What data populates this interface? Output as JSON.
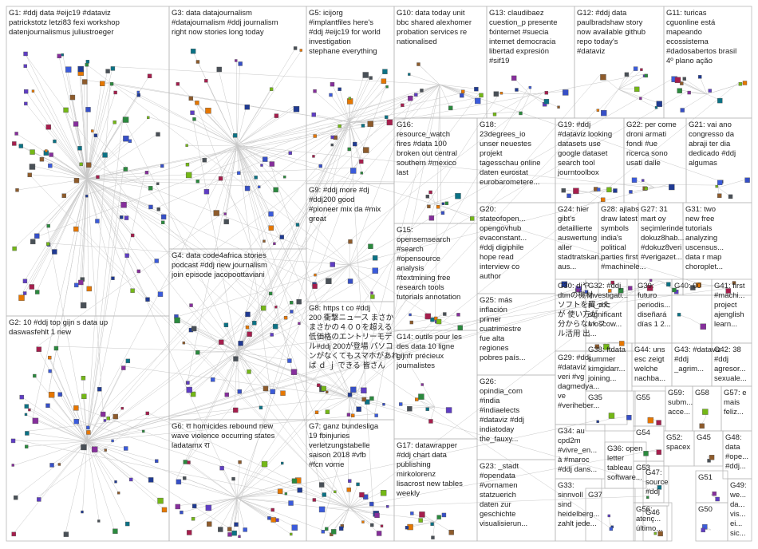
{
  "colors": {
    "node_palette": [
      "#1f3a93",
      "#3b5bdb",
      "#5f3dc4",
      "#862e9c",
      "#0b7285",
      "#2b8a3e",
      "#a61e4d",
      "#e67700",
      "#495057",
      "#8e5b2b",
      "#74b816",
      "#364fc7"
    ],
    "edge": "#c8c8c8",
    "border": "#b9b9b9"
  },
  "groups": [
    {
      "id": "G1",
      "lines": [
        "G1: #ddj data #eijc19 #dataviz",
        "patrickstotz letzi83 fexi workshop",
        "datenjournalismus juliustroeger"
      ]
    },
    {
      "id": "G2",
      "lines": [
        "G2: 10 #ddj top gijn s data up",
        "daswasfehlt 1 new"
      ]
    },
    {
      "id": "G3",
      "lines": [
        "G3: data datajournalism",
        "#datajournalism #ddj journalism",
        "right now stories long today"
      ]
    },
    {
      "id": "G4",
      "lines": [
        "G4: data code4africa stories",
        "podcast #ddj new journalism",
        "join episode jacopoottaviani"
      ]
    },
    {
      "id": "G5",
      "lines": [
        "G5: icijorg",
        "#implantfiles here's",
        "#ddj #eijc19 for world",
        "investigation",
        "stephane everything"
      ]
    },
    {
      "id": "G6",
      "lines": [
        "G6: रा homicides rebound new",
        "wave violence occurring states",
        "ladatamx रा"
      ]
    },
    {
      "id": "G7",
      "lines": [
        "G7: ganz bundesliga",
        "19 fbinjuries",
        "verletzungstabelle",
        "saison 2018 #vfb",
        "#fcn vorne"
      ]
    },
    {
      "id": "G8",
      "lines": [
        "G8: https t co #ddj",
        "200 衝撃ニュース まさか",
        "まさかの４００を超える",
        "低価格のエントリーモデ",
        "ル#ddj 200が登場 パソコ",
        "ンがなくてもスマホがあれ",
        "ば ｄ ｊ できる 皆さん"
      ]
    },
    {
      "id": "G9",
      "lines": [
        "G9: #ddj more #dj",
        "#ddj200 good",
        "#pioneer mix da #mix",
        "great"
      ]
    },
    {
      "id": "G10",
      "lines": [
        "G10: data today unit",
        "bbc shared alexhomer",
        "probation services re",
        "nationalised"
      ]
    },
    {
      "id": "G11",
      "lines": [
        "G11: turicas",
        "cguonline está",
        "mapeando",
        "ecossistema",
        "#dadosabertos brasil",
        "4º plano ação"
      ]
    },
    {
      "id": "G12",
      "lines": [
        "G12: #ddj data",
        "paulbradshaw story",
        "now available github",
        "repo today's",
        "#dataviz"
      ]
    },
    {
      "id": "G13",
      "lines": [
        "G13: claudibaez",
        "cuestion_p presente",
        "fxinternet #suecia",
        "internet democracia",
        "libertad expresión",
        "#sif19"
      ]
    },
    {
      "id": "G14",
      "lines": [
        "G14: outils pour les",
        "des data 10 ligne",
        "gijnfr précieux",
        "journalistes"
      ]
    },
    {
      "id": "G15",
      "lines": [
        "G15:",
        "opensemsearch",
        "#search",
        "#opensource",
        "analysis",
        "#textmining free",
        "research tools",
        "tutorials annotation"
      ]
    },
    {
      "id": "G16",
      "lines": [
        "G16:",
        "resource_watch",
        "fires #data 100",
        "broken out central",
        "southern #mexico",
        "last"
      ]
    },
    {
      "id": "G17",
      "lines": [
        "G17: datawrapper",
        "#ddj chart data",
        "publishing",
        "mirkolorenz",
        "lisacrost new tables",
        "weekly"
      ]
    },
    {
      "id": "G18",
      "lines": [
        "G18:",
        "23degrees_io",
        "unser neuestes",
        "projekt",
        "tagesschau online",
        "daten eurostat",
        "eurobarometere..."
      ]
    },
    {
      "id": "G19",
      "lines": [
        "G19: #ddj",
        "#dataviz looking",
        "datasets use",
        "google dataset",
        "search tool",
        "journtoolbox"
      ]
    },
    {
      "id": "G20",
      "lines": [
        "G20:",
        "stateofopen...",
        "opengovhub",
        "evaconstant...",
        "#ddj digiphile",
        "hope read",
        "interview co",
        "author"
      ]
    },
    {
      "id": "G21",
      "lines": [
        "G21: vai ano",
        "congresso da",
        "abraji ter dia",
        "dedicado #ddj",
        "algumas"
      ]
    },
    {
      "id": "G22",
      "lines": [
        "G22: per come",
        "droni armati",
        "fondi #ue",
        "ricerca sono",
        "usati dalle"
      ]
    },
    {
      "id": "G23",
      "lines": [
        "G23: _stadt",
        "#opendata",
        "#vornamen",
        "statzuerich",
        "daten zur",
        "geschichte",
        "visualisierun..."
      ]
    },
    {
      "id": "G24",
      "lines": [
        "G24: hier",
        "gibt's",
        "detaillierte",
        "auswertung",
        "aller",
        "stadtratskan...",
        "aus..."
      ]
    },
    {
      "id": "G25",
      "lines": [
        "G25: más",
        "inflación",
        "primer",
        "cuatrimestre",
        "fue alta",
        "regiones",
        "pobres país..."
      ]
    },
    {
      "id": "G26",
      "lines": [
        "G26:",
        "opindia_com",
        "#india",
        "#indiaelects",
        "#dataviz #ddj",
        "indiatoday",
        "the_fauxy..."
      ]
    },
    {
      "id": "G27",
      "lines": [
        "G27: 31",
        "mart oy",
        "seçimlerinde",
        "dokuz8hab...",
        "#dokuz8veri",
        "#verigazet..."
      ]
    },
    {
      "id": "G28",
      "lines": [
        "G28: ajlabs",
        "draw latest",
        "symbols",
        "india's",
        "political",
        "parties first",
        "#machinele..."
      ]
    },
    {
      "id": "G29",
      "lines": [
        "G29: #ddj",
        "#dataviz",
        "veri #vg",
        "dagmedya...",
        "ve",
        "#veriheber..."
      ]
    },
    {
      "id": "G30",
      "lines": [
        "G30: djや",
        "dtmの機材",
        "ソフトを買った",
        "が 使い方が",
        "分からない フ",
        "ル活用 出..."
      ]
    },
    {
      "id": "G31",
      "lines": [
        "G31: two",
        "new free",
        "tutorials",
        "analyzing",
        "uscensus...",
        "data r map",
        "choroplet..."
      ]
    },
    {
      "id": "G32",
      "lines": [
        "G32: #ddj",
        "investigati...",
        "ru_rbc",
        "significant",
        "moscow..."
      ]
    },
    {
      "id": "G33",
      "lines": [
        "G33:",
        "sinnvoll",
        "sind",
        "heidelberg...",
        "zahlt jede..."
      ]
    },
    {
      "id": "G34",
      "lines": [
        "G34: au",
        "cpd2m",
        "#vivre_en...",
        "à #maroc",
        "#ddj dans..."
      ]
    },
    {
      "id": "G35",
      "lines": [
        "G35"
      ]
    },
    {
      "id": "G36",
      "lines": [
        "G36: open",
        "letter",
        "tableau",
        "software..."
      ]
    },
    {
      "id": "G37",
      "lines": [
        "G37"
      ]
    },
    {
      "id": "G38",
      "lines": [
        "G38: ftdata",
        "summer",
        "kimgidarr...",
        "joining..."
      ]
    },
    {
      "id": "G39",
      "lines": [
        "G39:",
        "futuro",
        "periodis...",
        "diseñará",
        "días 1 2..."
      ]
    },
    {
      "id": "G40",
      "lines": [
        "G40: 00"
      ]
    },
    {
      "id": "G41",
      "lines": [
        "G41: first",
        "#machi...",
        "project",
        "ajenglish",
        "learn..."
      ]
    },
    {
      "id": "G42",
      "lines": [
        "G42: 38",
        "#ddj",
        "agresor...",
        "sexuale..."
      ]
    },
    {
      "id": "G43",
      "lines": [
        "G43: #dataviz",
        "#ddj",
        "_agrim..."
      ]
    },
    {
      "id": "G44",
      "lines": [
        "G44: uns",
        "esc zeigt",
        "welche",
        "nachba..."
      ]
    },
    {
      "id": "G45",
      "lines": [
        "G45"
      ]
    },
    {
      "id": "G46",
      "lines": [
        "G46"
      ]
    },
    {
      "id": "G47",
      "lines": [
        "G47:",
        "source",
        "#ddj"
      ]
    },
    {
      "id": "G48",
      "lines": [
        "G48:",
        "data",
        "#ope...",
        "#ddj..."
      ]
    },
    {
      "id": "G49",
      "lines": [
        "G49:",
        "we...",
        "da...",
        "vis...",
        "ei...",
        "sic..."
      ]
    },
    {
      "id": "G50",
      "lines": [
        "G50"
      ]
    },
    {
      "id": "G51",
      "lines": [
        "G51"
      ]
    },
    {
      "id": "G52",
      "lines": [
        "G52:",
        "spacex"
      ]
    },
    {
      "id": "G53",
      "lines": [
        "G53"
      ]
    },
    {
      "id": "G54",
      "lines": [
        "G54"
      ]
    },
    {
      "id": "G55",
      "lines": [
        "G55"
      ]
    },
    {
      "id": "G56",
      "lines": [
        "G56:",
        "atenç...",
        "último..."
      ]
    },
    {
      "id": "G57",
      "lines": [
        "G57: e",
        "mais",
        "feliz..."
      ]
    },
    {
      "id": "G58",
      "lines": [
        "G58"
      ]
    },
    {
      "id": "G59",
      "lines": [
        "G59:",
        "subm...",
        "acce..."
      ]
    }
  ]
}
